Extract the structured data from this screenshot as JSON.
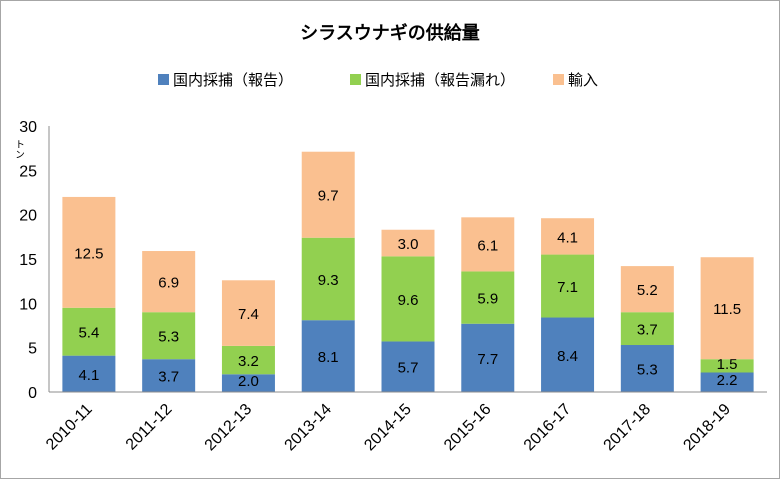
{
  "chart_data": {
    "type": "bar",
    "stacked": true,
    "title": "シラスウナギの供給量",
    "ylabel": "トン",
    "ylim": [
      0,
      30
    ],
    "yticks": [
      0,
      5,
      10,
      15,
      20,
      25,
      30
    ],
    "grid": false,
    "legend_position": "top",
    "categories": [
      "2010-11",
      "2011-12",
      "2012-13",
      "2013-14",
      "2014-15",
      "2015-16",
      "2016-17",
      "2017-18",
      "2018-19"
    ],
    "series": [
      {
        "name": "国内採捕（報告）",
        "color": "#4f81bd",
        "values": [
          4.1,
          3.7,
          2.0,
          8.1,
          5.7,
          7.7,
          8.4,
          5.3,
          2.2
        ]
      },
      {
        "name": "国内採捕（報告漏れ）",
        "color": "#92d050",
        "values": [
          5.4,
          5.3,
          3.2,
          9.3,
          9.6,
          5.9,
          7.1,
          3.7,
          1.5
        ]
      },
      {
        "name": "輸入",
        "color": "#fac090",
        "values": [
          12.5,
          6.9,
          7.4,
          9.7,
          3.0,
          6.1,
          4.1,
          5.2,
          11.5
        ]
      }
    ]
  }
}
